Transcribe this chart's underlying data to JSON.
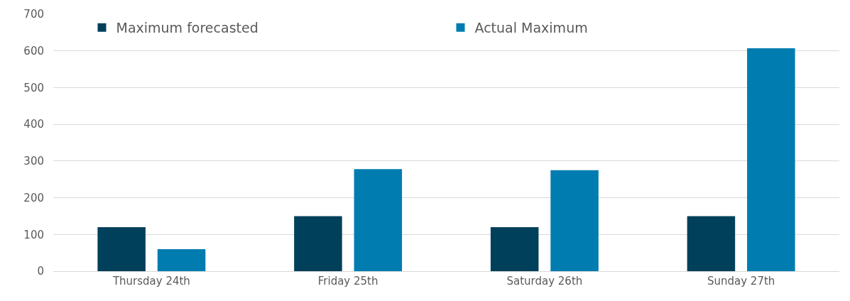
{
  "chart_data": {
    "type": "bar",
    "categories": [
      "Thursday 24th",
      "Friday 25th",
      "Saturday 26th",
      "Sunday 27th"
    ],
    "series": [
      {
        "name": "Maximum forecasted",
        "color": "#01405a",
        "values": [
          120,
          150,
          120,
          150
        ]
      },
      {
        "name": "Actual Maximum",
        "color": "#007cb0",
        "values": [
          60,
          278,
          275,
          607
        ]
      }
    ],
    "ylim": [
      0,
      700
    ],
    "yticks": [
      0,
      100,
      200,
      300,
      400,
      500,
      600,
      700
    ],
    "grid": "y",
    "legend": "top"
  }
}
